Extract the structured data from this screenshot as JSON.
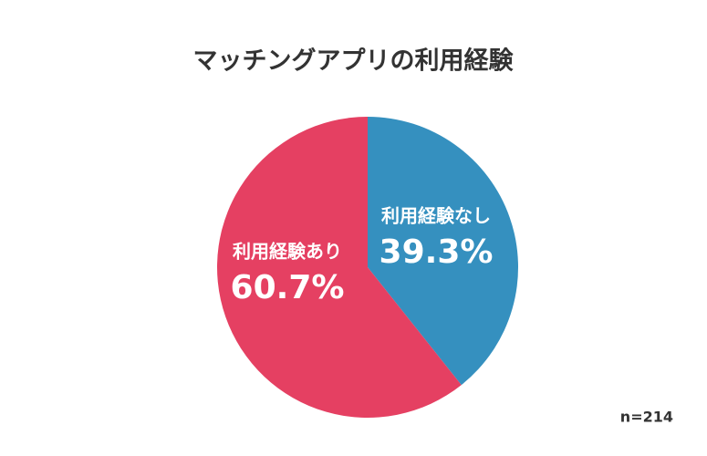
{
  "chart_data": {
    "type": "pie",
    "title": "マッチングアプリの利用経験",
    "categories": [
      "利用経験なし",
      "利用経験あり"
    ],
    "values": [
      39.3,
      60.7
    ],
    "value_labels": [
      "39.3%",
      "60.7%"
    ],
    "colors": [
      "#3590bf",
      "#e54062"
    ],
    "note": "n=214"
  }
}
